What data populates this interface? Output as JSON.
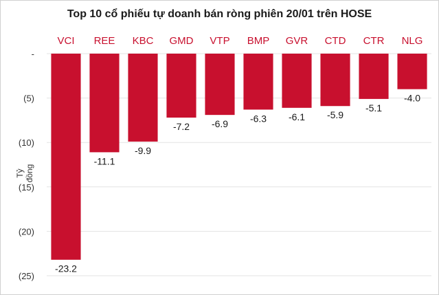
{
  "chart_data": {
    "type": "bar",
    "title": "Top 10 cổ phiếu tự doanh bán ròng phiên 20/01 trên HOSE",
    "ylabel": "Tỷ đồng",
    "xlabel": "",
    "categories": [
      "VCI",
      "REE",
      "KBC",
      "GMD",
      "VTP",
      "BMP",
      "GVR",
      "CTD",
      "CTR",
      "NLG"
    ],
    "values": [
      -23.2,
      -11.1,
      -9.9,
      -7.2,
      -6.9,
      -6.3,
      -6.1,
      -5.9,
      -5.1,
      -4.0
    ],
    "data_labels": [
      "-23.2",
      "-11.1",
      "-9.9",
      "-7.2",
      "-6.9",
      "-6.3",
      "-6.1",
      "-5.9",
      "-5.1",
      "-4.0"
    ],
    "ylim": [
      -25,
      0
    ],
    "y_ticks": [
      {
        "value": 0,
        "label": "-"
      },
      {
        "value": -5,
        "label": "(5)"
      },
      {
        "value": -10,
        "label": "(10)"
      },
      {
        "value": -15,
        "label": "(15)"
      },
      {
        "value": -20,
        "label": "(20)"
      },
      {
        "value": -25,
        "label": "(25)"
      }
    ],
    "category_axis_position": "top",
    "grid": true,
    "legend": "none",
    "bar_color": "#c8102e",
    "category_label_color": "#c8102e"
  }
}
